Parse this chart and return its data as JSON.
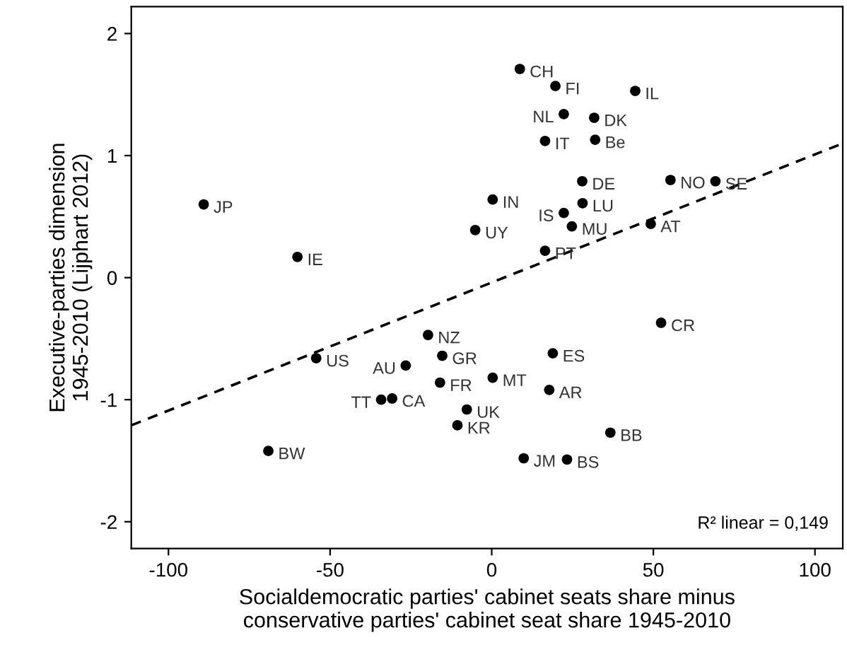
{
  "chart_data": {
    "type": "scatter",
    "xlabel": "Socialdemocratic parties' cabinet seats share minus\nconservative parties' cabinet seat share 1945-2010",
    "ylabel": "Executive-parties dimension\n1945-2010 (Lijphart 2012)",
    "xlim": [
      -111.5,
      108.6
    ],
    "ylim": [
      -2.22,
      2.22
    ],
    "xticks": [
      -100,
      -50,
      0,
      50,
      100
    ],
    "yticks": [
      -2,
      -1,
      0,
      1,
      2
    ],
    "grid": false,
    "annotations": [
      "R² linear = 0,149"
    ],
    "series": [
      {
        "color": "#000000",
        "marker": "circle",
        "x": [
          8.7,
          19.7,
          44.4,
          22.3,
          31.7,
          16.5,
          32.0,
          55.3,
          69.2,
          28.0,
          0.3,
          28.1,
          22.3,
          24.8,
          49.2,
          -5.1,
          16.5,
          -89.1,
          -60.1,
          52.4,
          -19.7,
          -15.3,
          -54.3,
          -26.6,
          -16.0,
          0.3,
          18.9,
          17.8,
          -34.2,
          -30.8,
          -7.7,
          -10.6,
          -69.1,
          9.9,
          36.7,
          23.3
        ],
        "values": [
          1.71,
          1.57,
          1.53,
          1.34,
          1.31,
          1.12,
          1.13,
          0.8,
          0.79,
          0.79,
          0.64,
          0.61,
          0.53,
          0.42,
          0.44,
          0.39,
          0.22,
          0.6,
          0.17,
          -0.37,
          -0.47,
          -0.64,
          -0.66,
          -0.72,
          -0.86,
          -0.82,
          -0.62,
          -0.92,
          -1.0,
          -0.99,
          -1.08,
          -1.21,
          -1.42,
          -1.48,
          -1.27,
          -1.49
        ],
        "value_labels": [
          "CH",
          "FI",
          "IL",
          "NL",
          "DK",
          "IT",
          "Be",
          "NO",
          "SE",
          "DE",
          "IN",
          "LU",
          "IS",
          "MU",
          "AT",
          "UY",
          "PT",
          "JP",
          "IE",
          "CR",
          "NZ",
          "GR",
          "US",
          "AU",
          "FR",
          "MT",
          "ES",
          "AR",
          "TT",
          "CA",
          "UK",
          "KR",
          "BW",
          "JM",
          "BB",
          "BS"
        ]
      },
      {
        "type": "line",
        "color": "#000000",
        "line_style": "dashed",
        "x": [
          -111.5,
          108.6
        ],
        "values": [
          -1.21,
          1.1
        ]
      }
    ]
  }
}
